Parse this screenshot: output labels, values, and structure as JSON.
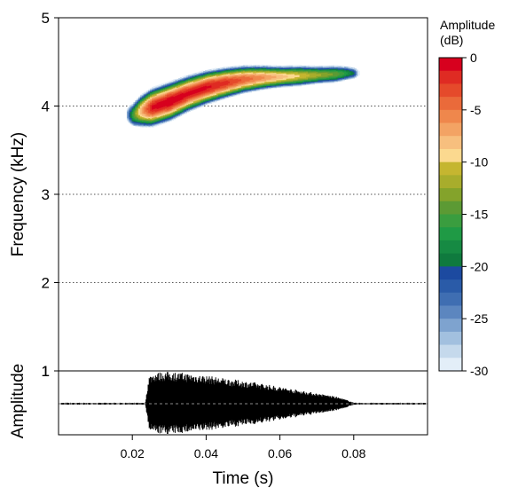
{
  "chart_data": [
    {
      "type": "heatmap",
      "title": "",
      "xlabel": "Time (s)",
      "ylabel": "Frequency (kHz)",
      "xlim": [
        0,
        0.1
      ],
      "ylim": [
        1,
        5
      ],
      "xticks": [
        "0.02",
        "0.04",
        "0.06",
        "0.08"
      ],
      "xtick_values": [
        0.02,
        0.04,
        0.06,
        0.08
      ],
      "yticks": [
        "1",
        "2",
        "3",
        "4",
        "5"
      ],
      "ytick_values": [
        1,
        2,
        3,
        4,
        5
      ],
      "grid": "dotted horizontal at 2, 3, 4 kHz",
      "ridge": {
        "t": [
          0.02,
          0.022,
          0.025,
          0.03,
          0.035,
          0.04,
          0.045,
          0.05,
          0.055,
          0.06,
          0.065,
          0.07,
          0.075,
          0.078,
          0.08
        ],
        "f": [
          3.9,
          3.94,
          3.98,
          4.05,
          4.14,
          4.21,
          4.26,
          4.3,
          4.32,
          4.33,
          4.34,
          4.35,
          4.36,
          4.37,
          4.37
        ],
        "peak_db": [
          -15,
          -8,
          -1,
          0,
          -1,
          -1,
          -2,
          -4,
          -6,
          -8,
          -10,
          -12,
          -14,
          -17,
          -20
        ],
        "bandwidth_khz": [
          0.13,
          0.15,
          0.16,
          0.16,
          0.15,
          0.14,
          0.13,
          0.12,
          0.11,
          0.1,
          0.1,
          0.09,
          0.09,
          0.08,
          0.07
        ]
      }
    },
    {
      "type": "area",
      "title": "",
      "ylabel": "Amplitude",
      "yticks": [
        "1"
      ],
      "ytick_values": [
        1
      ],
      "xlim": [
        0,
        0.1
      ],
      "envelope": {
        "t": [
          0.0235,
          0.0245,
          0.026,
          0.028,
          0.03,
          0.035,
          0.04,
          0.045,
          0.05,
          0.055,
          0.06,
          0.065,
          0.07,
          0.075,
          0.078,
          0.08
        ],
        "a": [
          0.0,
          0.85,
          0.95,
          0.97,
          0.98,
          0.93,
          0.86,
          0.78,
          0.7,
          0.62,
          0.52,
          0.42,
          0.32,
          0.22,
          0.12,
          0.03
        ]
      },
      "noise_level": 0.03
    },
    {
      "type": "colorbar",
      "title_lines": [
        "Amplitude",
        "(dB)"
      ],
      "range": [
        -30,
        0
      ],
      "ticks": [
        "0",
        "-5",
        "-10",
        "-15",
        "-20",
        "-25",
        "-30"
      ],
      "tick_values": [
        0,
        -5,
        -10,
        -15,
        -20,
        -25,
        -30
      ],
      "colors": [
        "#d7001e",
        "#df2b23",
        "#e54a2b",
        "#ea6a3a",
        "#ef874c",
        "#f3a364",
        "#f7bf7e",
        "#fbd98f",
        "#c5b630",
        "#a8ad2c",
        "#84a32b",
        "#5c9a34",
        "#3a9d3f",
        "#1f9a45",
        "#168a43",
        "#0f7a3e",
        "#1c4aa0",
        "#2a5ba8",
        "#3f6eb2",
        "#5c86bf",
        "#7ea3cf",
        "#a2c0df",
        "#c5d9ec",
        "#e3eef8"
      ]
    }
  ]
}
